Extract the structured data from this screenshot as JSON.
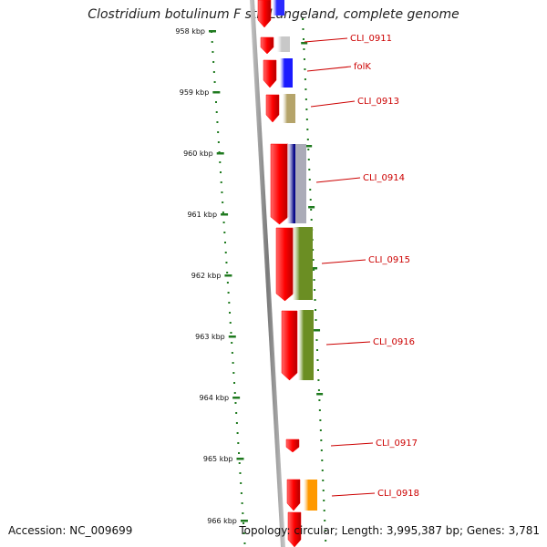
{
  "title": "Clostridium botulinum F str. Langeland, complete genome",
  "footer": {
    "accession": "Accession: NC_009699",
    "info": "Topology: circular; Length: 3,995,387 bp; Genes: 3,781"
  },
  "ruler": {
    "ticks": [
      "958 kbp",
      "959 kbp",
      "960 kbp",
      "961 kbp",
      "962 kbp",
      "963 kbp",
      "964 kbp",
      "965 kbp",
      "966 kbp"
    ],
    "tick_color": "#1f7a1f"
  },
  "backbone_color": "#8a8a8a",
  "genes": [
    {
      "label": "CLI_0911",
      "feature_color": "#c8c8c8"
    },
    {
      "label": "folK",
      "feature_color": "#1a1aff"
    },
    {
      "label": "CLI_0913",
      "feature_color": "#b5a46a"
    },
    {
      "label": "CLI_0914",
      "feature_color": "#0a0a8a"
    },
    {
      "label": "CLI_0915",
      "feature_color": "#6b8e23"
    },
    {
      "label": "CLI_0916",
      "feature_color": "#6b8e23"
    },
    {
      "label": "CLI_0917",
      "feature_color": null
    },
    {
      "label": "CLI_0918",
      "feature_color": "#ff9900"
    }
  ],
  "cds_color": "#ff0000",
  "label_color": "#cc0000"
}
